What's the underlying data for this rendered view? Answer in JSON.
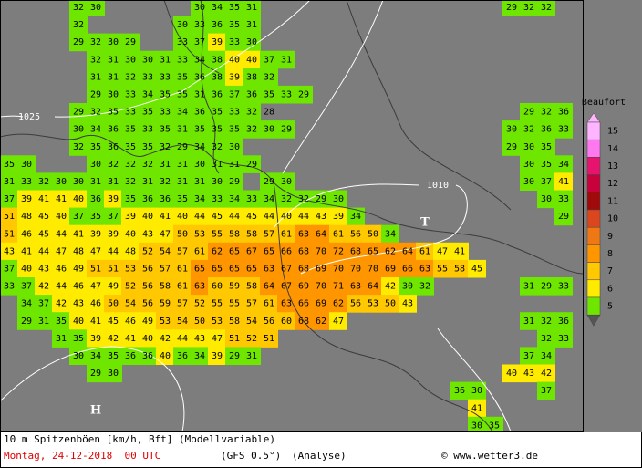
{
  "map": {
    "grid": [
      [
        null,
        null,
        null,
        null,
        32,
        30,
        null,
        null,
        null,
        null,
        null,
        30,
        34,
        35,
        31,
        null,
        null,
        null,
        null,
        null,
        null,
        null,
        null,
        null,
        null,
        null,
        null,
        null,
        null,
        29,
        32,
        32
      ],
      [
        null,
        null,
        null,
        null,
        32,
        null,
        null,
        null,
        null,
        null,
        30,
        33,
        36,
        35,
        31
      ],
      [
        null,
        null,
        null,
        null,
        29,
        32,
        30,
        29,
        null,
        null,
        33,
        37,
        39,
        33,
        30
      ],
      [
        null,
        null,
        null,
        null,
        null,
        32,
        31,
        30,
        30,
        31,
        33,
        34,
        38,
        40,
        40,
        37,
        31
      ],
      [
        null,
        null,
        null,
        null,
        null,
        31,
        31,
        32,
        33,
        33,
        35,
        36,
        38,
        39,
        38,
        32
      ],
      [
        null,
        null,
        null,
        null,
        null,
        29,
        30,
        33,
        34,
        35,
        35,
        31,
        36,
        37,
        36,
        35,
        33,
        29
      ],
      [
        null,
        null,
        null,
        null,
        29,
        32,
        35,
        33,
        35,
        33,
        34,
        36,
        35,
        33,
        32,
        28,
        null,
        null,
        null,
        null,
        null,
        null,
        null,
        null,
        null,
        null,
        null,
        null,
        null,
        null,
        29,
        32,
        36
      ],
      [
        null,
        null,
        null,
        null,
        30,
        34,
        36,
        35,
        33,
        35,
        31,
        35,
        35,
        35,
        32,
        30,
        29,
        null,
        null,
        null,
        null,
        null,
        null,
        null,
        null,
        null,
        null,
        null,
        null,
        30,
        32,
        36,
        33
      ],
      [
        null,
        null,
        null,
        null,
        32,
        35,
        36,
        35,
        35,
        32,
        29,
        34,
        32,
        30,
        null,
        null,
        null,
        null,
        null,
        null,
        null,
        null,
        null,
        null,
        null,
        null,
        null,
        null,
        null,
        29,
        30,
        35
      ],
      [
        35,
        30,
        null,
        null,
        null,
        30,
        32,
        32,
        32,
        31,
        31,
        30,
        31,
        31,
        29,
        null,
        null,
        null,
        null,
        null,
        null,
        null,
        null,
        null,
        null,
        null,
        null,
        null,
        null,
        null,
        30,
        35,
        34
      ],
      [
        31,
        33,
        32,
        30,
        30,
        31,
        31,
        32,
        31,
        32,
        31,
        31,
        30,
        29,
        null,
        29,
        30,
        null,
        null,
        null,
        null,
        null,
        null,
        null,
        null,
        null,
        null,
        null,
        null,
        null,
        30,
        37,
        41
      ],
      [
        37,
        39,
        41,
        41,
        40,
        36,
        39,
        35,
        36,
        36,
        35,
        34,
        33,
        34,
        33,
        34,
        32,
        32,
        29,
        30,
        null,
        null,
        null,
        null,
        null,
        null,
        null,
        null,
        null,
        null,
        null,
        30,
        33
      ],
      [
        51,
        48,
        45,
        40,
        37,
        35,
        37,
        39,
        40,
        41,
        40,
        44,
        45,
        44,
        45,
        44,
        40,
        44,
        43,
        39,
        34,
        null,
        null,
        null,
        null,
        null,
        null,
        null,
        null,
        null,
        null,
        null,
        29
      ],
      [
        51,
        46,
        45,
        44,
        41,
        39,
        39,
        40,
        43,
        47,
        50,
        53,
        55,
        58,
        58,
        57,
        61,
        63,
        64,
        61,
        56,
        50,
        34
      ],
      [
        43,
        41,
        44,
        47,
        48,
        47,
        44,
        48,
        52,
        54,
        57,
        61,
        62,
        65,
        67,
        65,
        66,
        68,
        70,
        72,
        68,
        65,
        62,
        64,
        61,
        47,
        41
      ],
      [
        37,
        40,
        43,
        46,
        49,
        51,
        51,
        53,
        56,
        57,
        61,
        65,
        65,
        65,
        65,
        63,
        67,
        68,
        69,
        70,
        70,
        70,
        69,
        66,
        63,
        55,
        58,
        45
      ],
      [
        33,
        37,
        42,
        44,
        46,
        47,
        49,
        52,
        56,
        58,
        61,
        63,
        60,
        59,
        58,
        64,
        67,
        69,
        70,
        71,
        63,
        64,
        42,
        30,
        32,
        null,
        null,
        null,
        null,
        null,
        31,
        29,
        33
      ],
      [
        null,
        34,
        37,
        42,
        43,
        46,
        50,
        54,
        56,
        59,
        57,
        52,
        55,
        55,
        57,
        61,
        63,
        66,
        69,
        62,
        56,
        53,
        50,
        43
      ],
      [
        null,
        29,
        31,
        35,
        40,
        41,
        45,
        46,
        49,
        53,
        54,
        50,
        53,
        58,
        54,
        56,
        60,
        68,
        62,
        47,
        null,
        null,
        null,
        null,
        null,
        null,
        null,
        null,
        null,
        null,
        31,
        32,
        36
      ],
      [
        null,
        null,
        null,
        31,
        35,
        39,
        42,
        41,
        40,
        42,
        44,
        43,
        47,
        51,
        52,
        51,
        null,
        null,
        null,
        null,
        null,
        null,
        null,
        null,
        null,
        null,
        null,
        null,
        null,
        null,
        null,
        32,
        33
      ],
      [
        null,
        null,
        null,
        null,
        30,
        34,
        35,
        36,
        36,
        40,
        36,
        34,
        39,
        29,
        31,
        null,
        null,
        null,
        null,
        null,
        null,
        null,
        null,
        null,
        null,
        null,
        null,
        null,
        null,
        null,
        37,
        34
      ],
      [
        null,
        null,
        null,
        null,
        null,
        29,
        30,
        null,
        null,
        null,
        null,
        null,
        null,
        null,
        null,
        null,
        null,
        null,
        null,
        null,
        null,
        null,
        null,
        null,
        null,
        null,
        null,
        null,
        null,
        40,
        43,
        42
      ],
      [
        null,
        null,
        null,
        null,
        null,
        null,
        null,
        null,
        null,
        null,
        null,
        null,
        null,
        null,
        null,
        null,
        null,
        null,
        null,
        null,
        null,
        null,
        null,
        null,
        null,
        null,
        36,
        30,
        null,
        null,
        null,
        37
      ],
      [
        null,
        null,
        null,
        null,
        null,
        null,
        null,
        null,
        null,
        null,
        null,
        null,
        null,
        null,
        null,
        null,
        null,
        null,
        null,
        null,
        null,
        null,
        null,
        null,
        null,
        null,
        null,
        41
      ],
      [
        null,
        null,
        null,
        null,
        null,
        null,
        null,
        null,
        null,
        null,
        null,
        null,
        null,
        null,
        null,
        null,
        null,
        null,
        null,
        null,
        null,
        null,
        null,
        null,
        null,
        null,
        null,
        30,
        35
      ]
    ],
    "isobars": [
      "1025",
      "1010"
    ],
    "pressure_centers": [
      "T",
      "H"
    ]
  },
  "legend": {
    "title": "Beaufort",
    "items": [
      {
        "label": 15,
        "color": "#ffb4ff"
      },
      {
        "label": 14,
        "color": "#ff78f0"
      },
      {
        "label": 13,
        "color": "#e6146e"
      },
      {
        "label": 12,
        "color": "#c8003c"
      },
      {
        "label": 11,
        "color": "#a00a0a"
      },
      {
        "label": 10,
        "color": "#dc461e"
      },
      {
        "label": 9,
        "color": "#f07814"
      },
      {
        "label": 8,
        "color": "#ff9600"
      },
      {
        "label": 7,
        "color": "#ffc800"
      },
      {
        "label": 6,
        "color": "#ffeb00"
      },
      {
        "label": 5,
        "color": "#6ee600"
      }
    ]
  },
  "footer": {
    "variable": "10 m Spitzenböen [km/h, Bft] (Modellvariable)",
    "date": "Montag, 24-12-2018  00 UTC",
    "model": "(GFS 0.5°)",
    "run": "(Analyse)",
    "credit": "© www.wetter3.de"
  }
}
